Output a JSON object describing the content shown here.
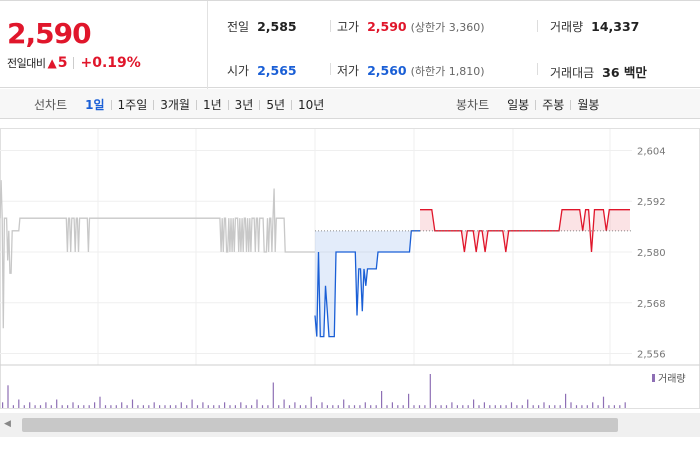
{
  "quote": {
    "price": "2,590",
    "change_label": "전일대비",
    "change_arrow": "▲",
    "change_value": "5",
    "change_pct": "+0.19%"
  },
  "stats": {
    "prev_label": "전일",
    "prev_value": "2,585",
    "open_label": "시가",
    "open_value": "2,565",
    "high_label": "고가",
    "high_value": "2,590",
    "high_sub": "(상한가 3,360)",
    "low_label": "저가",
    "low_value": "2,560",
    "low_sub": "(하한가 1,810)",
    "volume_label": "거래량",
    "volume_value": "14,337",
    "amount_label": "거래대금",
    "amount_value": "36 백만"
  },
  "line_tabs": {
    "head": "선차트",
    "items": [
      "1일",
      "1주일",
      "3개월",
      "1년",
      "3년",
      "5년",
      "10년"
    ],
    "active": 0
  },
  "candle_tabs": {
    "head": "봉차트",
    "items": [
      "일봉",
      "주봉",
      "월봉"
    ]
  },
  "colors": {
    "up": "#e0162b",
    "down": "#1a5fd6",
    "grey": "#c8c8c8",
    "volume": "#8e6fb5"
  },
  "chart_data": {
    "type": "line",
    "baseline": 2585,
    "ylim": [
      2554,
      2606
    ],
    "yticks": [
      2604,
      2592,
      2580,
      2568,
      2556
    ],
    "series": [
      {
        "values": [
          2588,
          2597,
          2588,
          2562,
          2588,
          2588,
          2588,
          2578,
          2585,
          2575,
          2575,
          2585,
          2585,
          2585,
          2585,
          2585,
          2585,
          2585,
          2588,
          2588,
          2588,
          2588,
          2588,
          2588,
          2588,
          2588,
          2588,
          2588,
          2588,
          2588,
          2588,
          2588,
          2588,
          2588,
          2588,
          2588,
          2588,
          2588,
          2588,
          2588,
          2588,
          2588,
          2588,
          2588,
          2588,
          2588,
          2588,
          2588,
          2588,
          2588,
          2588,
          2588,
          2588,
          2588,
          2588,
          2588,
          2588,
          2588,
          2588,
          2588,
          2588,
          2580,
          2588,
          2588,
          2580,
          2588,
          2588,
          2588,
          2580,
          2588,
          2588,
          2580,
          2588,
          2588,
          2588,
          2588,
          2588,
          2588,
          2588,
          2588,
          2580,
          2588,
          2588,
          2588,
          2588,
          2588,
          2588,
          2588,
          2588,
          2588,
          2588,
          2588,
          2588,
          2588,
          2588,
          2588,
          2588,
          2588,
          2588,
          2588,
          2588,
          2588,
          2588,
          2588,
          2588,
          2588,
          2588,
          2588,
          2588,
          2588,
          2588,
          2588,
          2588,
          2588,
          2588,
          2588,
          2588,
          2588,
          2588,
          2588,
          2588,
          2588,
          2588,
          2588,
          2588,
          2588,
          2588,
          2588,
          2588,
          2588,
          2588,
          2588,
          2588,
          2588,
          2588,
          2588,
          2588,
          2588,
          2588,
          2588,
          2588,
          2588,
          2588,
          2588,
          2588,
          2588,
          2588,
          2588,
          2588,
          2588,
          2588,
          2588,
          2588,
          2588,
          2588,
          2588,
          2588,
          2588,
          2588,
          2588,
          2588,
          2588,
          2588,
          2588,
          2588,
          2588,
          2588,
          2588,
          2588,
          2588,
          2588,
          2588,
          2588,
          2588,
          2588,
          2588,
          2588,
          2588,
          2588,
          2588,
          2588,
          2588,
          2588,
          2588,
          2588,
          2588,
          2588,
          2588,
          2588,
          2588,
          2588,
          2588,
          2588,
          2588,
          2588,
          2588,
          2588,
          2588,
          2588,
          2588,
          2580,
          2588,
          2580,
          2588,
          2588,
          2580,
          2580,
          2588,
          2580,
          2588,
          2580,
          2588,
          2580,
          2588,
          2588,
          2588,
          2580,
          2588,
          2580,
          2588,
          2580,
          2588,
          2588,
          2580,
          2588,
          2580,
          2588,
          2580,
          2588,
          2588,
          2588,
          2580,
          2588,
          2588,
          2580,
          2588,
          2588,
          2588,
          2588,
          2580,
          2580,
          2580,
          2588,
          2580,
          2588,
          2588,
          2580,
          2588,
          2595,
          2580,
          2588,
          2588,
          2588,
          2588,
          2588,
          2588,
          2588,
          2588,
          2580,
          2580,
          2580,
          2580,
          2580,
          2580,
          2580,
          2580,
          2580,
          2580,
          2580,
          2580,
          2580,
          2580,
          2580,
          2580,
          2580,
          2580,
          2580,
          2580,
          2580,
          2580,
          2580,
          2580,
          2580,
          2580,
          2580,
          2580
        ]
      },
      {
        "values": [
          2565,
          2560,
          2580,
          2560,
          2560,
          2560,
          2572,
          2566,
          2560,
          2560,
          2560,
          2560,
          2580,
          2580,
          2580,
          2580,
          2580,
          2580,
          2580,
          2580,
          2580,
          2580,
          2580,
          2580,
          2565,
          2576,
          2576,
          2566,
          2576,
          2572,
          2576,
          2576,
          2576,
          2576,
          2576,
          2576,
          2580,
          2580,
          2580,
          2580,
          2580,
          2580,
          2580,
          2580,
          2580,
          2580,
          2580,
          2580,
          2580,
          2580,
          2580,
          2580,
          2580,
          2580,
          2580,
          2585,
          2585,
          2585,
          2585,
          2585,
          2585
        ]
      },
      {
        "values": [
          2590,
          2590,
          2590,
          2590,
          2590,
          2585,
          2585,
          2585,
          2585,
          2585,
          2585,
          2585,
          2585,
          2585,
          2585,
          2580,
          2585,
          2585,
          2585,
          2580,
          2585,
          2585,
          2580,
          2585,
          2585,
          2585,
          2585,
          2585,
          2585,
          2580,
          2585,
          2585,
          2585,
          2585,
          2585,
          2585,
          2585,
          2585,
          2585,
          2585,
          2585,
          2585,
          2585,
          2585,
          2585,
          2585,
          2585,
          2585,
          2590,
          2590,
          2590,
          2590,
          2590,
          2590,
          2590,
          2585,
          2590,
          2590,
          2580,
          2590,
          2590,
          2590,
          2590,
          2585,
          2590,
          2590,
          2590,
          2590,
          2590,
          2590,
          2590,
          2590
        ]
      }
    ],
    "volume_label": "거래량",
    "volumes": [
      2,
      8,
      1,
      3,
      1,
      2,
      1,
      1,
      2,
      1,
      3,
      1,
      1,
      2,
      1,
      1,
      1,
      2,
      4,
      1,
      1,
      1,
      2,
      1,
      3,
      1,
      1,
      1,
      2,
      1,
      1,
      1,
      1,
      2,
      1,
      3,
      1,
      2,
      1,
      1,
      1,
      2,
      1,
      1,
      2,
      1,
      1,
      3,
      1,
      1,
      9,
      1,
      3,
      1,
      2,
      1,
      1,
      4,
      1,
      2,
      1,
      1,
      1,
      3,
      1,
      1,
      1,
      2,
      1,
      1,
      6,
      1,
      2,
      1,
      1,
      5,
      1,
      1,
      1,
      12,
      1,
      1,
      1,
      2,
      1,
      1,
      1,
      3,
      1,
      2,
      1,
      1,
      1,
      1,
      2,
      1,
      1,
      3,
      1,
      1,
      2,
      1,
      1,
      1,
      5,
      2,
      1,
      1,
      1,
      2,
      1,
      4,
      1,
      1,
      1,
      2
    ]
  }
}
